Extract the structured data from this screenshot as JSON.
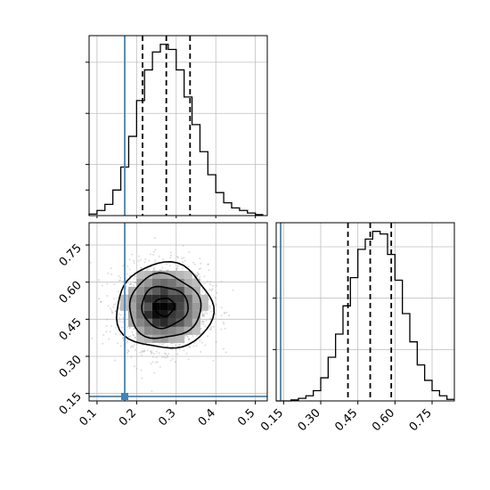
{
  "chart_data": [
    {
      "type": "histogram",
      "panel": "marginal-x",
      "bins": [
        0.08,
        0.1,
        0.12,
        0.14,
        0.16,
        0.18,
        0.2,
        0.22,
        0.24,
        0.26,
        0.28,
        0.3,
        0.32,
        0.34,
        0.36,
        0.38,
        0.4,
        0.42,
        0.44,
        0.46,
        0.48,
        0.5,
        0.52
      ],
      "counts": [
        3,
        10,
        22,
        50,
        95,
        155,
        225,
        285,
        320,
        335,
        325,
        285,
        232,
        178,
        125,
        80,
        45,
        25,
        15,
        10,
        5,
        2
      ],
      "quantile_lines": [
        0.215,
        0.275,
        0.335
      ],
      "truth": 0.17,
      "xlim": [
        0.08,
        0.53
      ],
      "grid": true
    },
    {
      "type": "histogram",
      "panel": "marginal-y",
      "bins": [
        0.12,
        0.15,
        0.18,
        0.21,
        0.24,
        0.27,
        0.3,
        0.33,
        0.36,
        0.39,
        0.42,
        0.45,
        0.48,
        0.51,
        0.54,
        0.57,
        0.6,
        0.63,
        0.66,
        0.69,
        0.72,
        0.75,
        0.78,
        0.81,
        0.84
      ],
      "counts": [
        0,
        0,
        2,
        5,
        10,
        20,
        45,
        85,
        130,
        185,
        240,
        295,
        315,
        330,
        325,
        285,
        235,
        170,
        115,
        70,
        40,
        20,
        10,
        3
      ],
      "quantile_lines": [
        0.41,
        0.5,
        0.585
      ],
      "truth": 0.138,
      "xlim": [
        0.12,
        0.84
      ],
      "xticks": [
        "0.15",
        "0.30",
        "0.45",
        "0.60",
        "0.75"
      ],
      "grid": true
    },
    {
      "type": "scatter",
      "panel": "joint",
      "xlim": [
        0.08,
        0.53
      ],
      "ylim": [
        0.12,
        0.84
      ],
      "xticks": [
        "0.1",
        "0.2",
        "0.3",
        "0.4",
        "0.5"
      ],
      "yticks": [
        "0.15",
        "0.30",
        "0.45",
        "0.60",
        "0.75"
      ],
      "center": [
        0.27,
        0.5
      ],
      "spread": [
        0.055,
        0.085
      ],
      "n_points": 2000,
      "contour_levels": 4,
      "truth_point": [
        0.17,
        0.138
      ],
      "grid": true
    }
  ],
  "colors": {
    "truth": "#4682b4",
    "hist": "#000000",
    "grid": "#bfbfbf",
    "scatter": "#9a9a9a"
  }
}
